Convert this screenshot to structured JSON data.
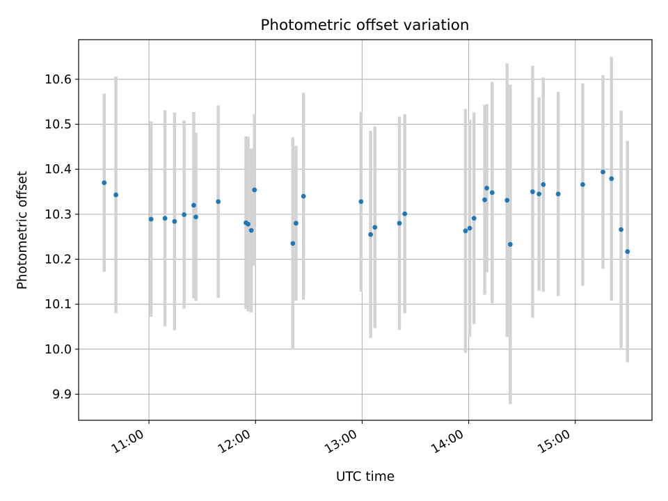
{
  "chart_data": {
    "type": "scatter",
    "title": "Photometric offset variation",
    "xlabel": "UTC time",
    "ylabel": "Photometric offset",
    "xlim": [
      10.34,
      15.72
    ],
    "ylim": [
      9.842,
      10.688
    ],
    "grid": true,
    "x_ticks": [
      {
        "value": 11,
        "label": "11:00"
      },
      {
        "value": 12,
        "label": "12:00"
      },
      {
        "value": 13,
        "label": "13:00"
      },
      {
        "value": 14,
        "label": "14:00"
      },
      {
        "value": 15,
        "label": "15:00"
      }
    ],
    "y_ticks": [
      {
        "value": 9.9,
        "label": "9.9"
      },
      {
        "value": 10.0,
        "label": "10.0"
      },
      {
        "value": 10.1,
        "label": "10.1"
      },
      {
        "value": 10.2,
        "label": "10.2"
      },
      {
        "value": 10.3,
        "label": "10.3"
      },
      {
        "value": 10.4,
        "label": "10.4"
      },
      {
        "value": 10.5,
        "label": "10.5"
      },
      {
        "value": 10.6,
        "label": "10.6"
      }
    ],
    "marker_color": "#1f77b4",
    "errorbar_color": "#d3d3d3",
    "series": [
      {
        "name": "offset",
        "points": [
          {
            "x": 10.58,
            "y": 10.37,
            "yerr": 0.198
          },
          {
            "x": 10.69,
            "y": 10.343,
            "yerr": 0.263
          },
          {
            "x": 11.02,
            "y": 10.289,
            "yerr": 0.217
          },
          {
            "x": 11.15,
            "y": 10.291,
            "yerr": 0.24
          },
          {
            "x": 11.24,
            "y": 10.284,
            "yerr": 0.242
          },
          {
            "x": 11.33,
            "y": 10.299,
            "yerr": 0.209
          },
          {
            "x": 11.42,
            "y": 10.32,
            "yerr": 0.207
          },
          {
            "x": 11.44,
            "y": 10.294,
            "yerr": 0.187
          },
          {
            "x": 11.65,
            "y": 10.328,
            "yerr": 0.214
          },
          {
            "x": 11.91,
            "y": 10.281,
            "yerr": 0.192
          },
          {
            "x": 11.93,
            "y": 10.278,
            "yerr": 0.194
          },
          {
            "x": 11.96,
            "y": 10.264,
            "yerr": 0.182
          },
          {
            "x": 11.99,
            "y": 10.354,
            "yerr": 0.168
          },
          {
            "x": 12.35,
            "y": 10.235,
            "yerr": 0.236
          },
          {
            "x": 12.38,
            "y": 10.28,
            "yerr": 0.172
          },
          {
            "x": 12.45,
            "y": 10.34,
            "yerr": 0.23
          },
          {
            "x": 12.99,
            "y": 10.328,
            "yerr": 0.2
          },
          {
            "x": 13.08,
            "y": 10.255,
            "yerr": 0.23
          },
          {
            "x": 13.12,
            "y": 10.271,
            "yerr": 0.224
          },
          {
            "x": 13.35,
            "y": 10.28,
            "yerr": 0.237
          },
          {
            "x": 13.4,
            "y": 10.301,
            "yerr": 0.221
          },
          {
            "x": 13.97,
            "y": 10.263,
            "yerr": 0.271
          },
          {
            "x": 14.01,
            "y": 10.269,
            "yerr": 0.241
          },
          {
            "x": 14.05,
            "y": 10.291,
            "yerr": 0.235
          },
          {
            "x": 14.15,
            "y": 10.332,
            "yerr": 0.211
          },
          {
            "x": 14.17,
            "y": 10.358,
            "yerr": 0.187
          },
          {
            "x": 14.22,
            "y": 10.348,
            "yerr": 0.246
          },
          {
            "x": 14.36,
            "y": 10.331,
            "yerr": 0.304
          },
          {
            "x": 14.39,
            "y": 10.233,
            "yerr": 0.355
          },
          {
            "x": 14.6,
            "y": 10.35,
            "yerr": 0.28
          },
          {
            "x": 14.66,
            "y": 10.345,
            "yerr": 0.215
          },
          {
            "x": 14.7,
            "y": 10.366,
            "yerr": 0.238
          },
          {
            "x": 14.84,
            "y": 10.345,
            "yerr": 0.227
          },
          {
            "x": 15.07,
            "y": 10.366,
            "yerr": 0.225
          },
          {
            "x": 15.26,
            "y": 10.394,
            "yerr": 0.215
          },
          {
            "x": 15.34,
            "y": 10.379,
            "yerr": 0.271
          },
          {
            "x": 15.43,
            "y": 10.266,
            "yerr": 0.264
          },
          {
            "x": 15.49,
            "y": 10.217,
            "yerr": 0.246
          }
        ]
      }
    ]
  }
}
